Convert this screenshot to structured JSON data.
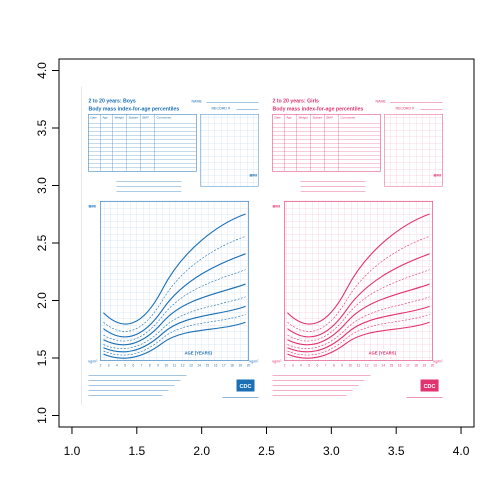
{
  "chart_data": {
    "type": "scatter",
    "title": "",
    "xlabel": "",
    "ylabel": "",
    "xlim": [
      0.9,
      4.1
    ],
    "ylim": [
      0.9,
      4.1
    ],
    "x_ticks": [
      "1.0",
      "1.5",
      "2.0",
      "2.5",
      "3.0",
      "3.5",
      "4.0"
    ],
    "y_ticks": [
      "1.0",
      "1.5",
      "2.0",
      "2.5",
      "3.0",
      "3.5",
      "4.0"
    ],
    "grid": false,
    "background_image": {
      "extent_x": [
        1.05,
        3.95
      ],
      "extent_y": [
        1.0,
        3.95
      ],
      "left_panel": {
        "heading": "2 to 20 years: Boys",
        "subheading": "Body mass index-for-age percentiles",
        "name_label": "NAME",
        "record_label": "RECORD #",
        "table_columns": [
          "Date",
          "Age",
          "Weight",
          "Stature",
          "BMI*",
          "Comments"
        ],
        "bmi_label": "BMI",
        "kg_label": "kg/m²",
        "age_axis_label": "AGE (YEARS)",
        "color": "#1a6fb5"
      },
      "right_panel": {
        "heading": "2 to 20 years: Girls",
        "subheading": "Body mass index-for-age percentiles",
        "name_label": "NAME",
        "record_label": "RECORD #",
        "table_columns": [
          "Date",
          "Age",
          "Weight",
          "Stature",
          "BMI*",
          "Comments"
        ],
        "bmi_label": "BMI",
        "kg_label": "kg/m²",
        "age_axis_label": "AGE (YEARS)",
        "color": "#e0336f"
      },
      "logo_text": "CDC"
    }
  }
}
